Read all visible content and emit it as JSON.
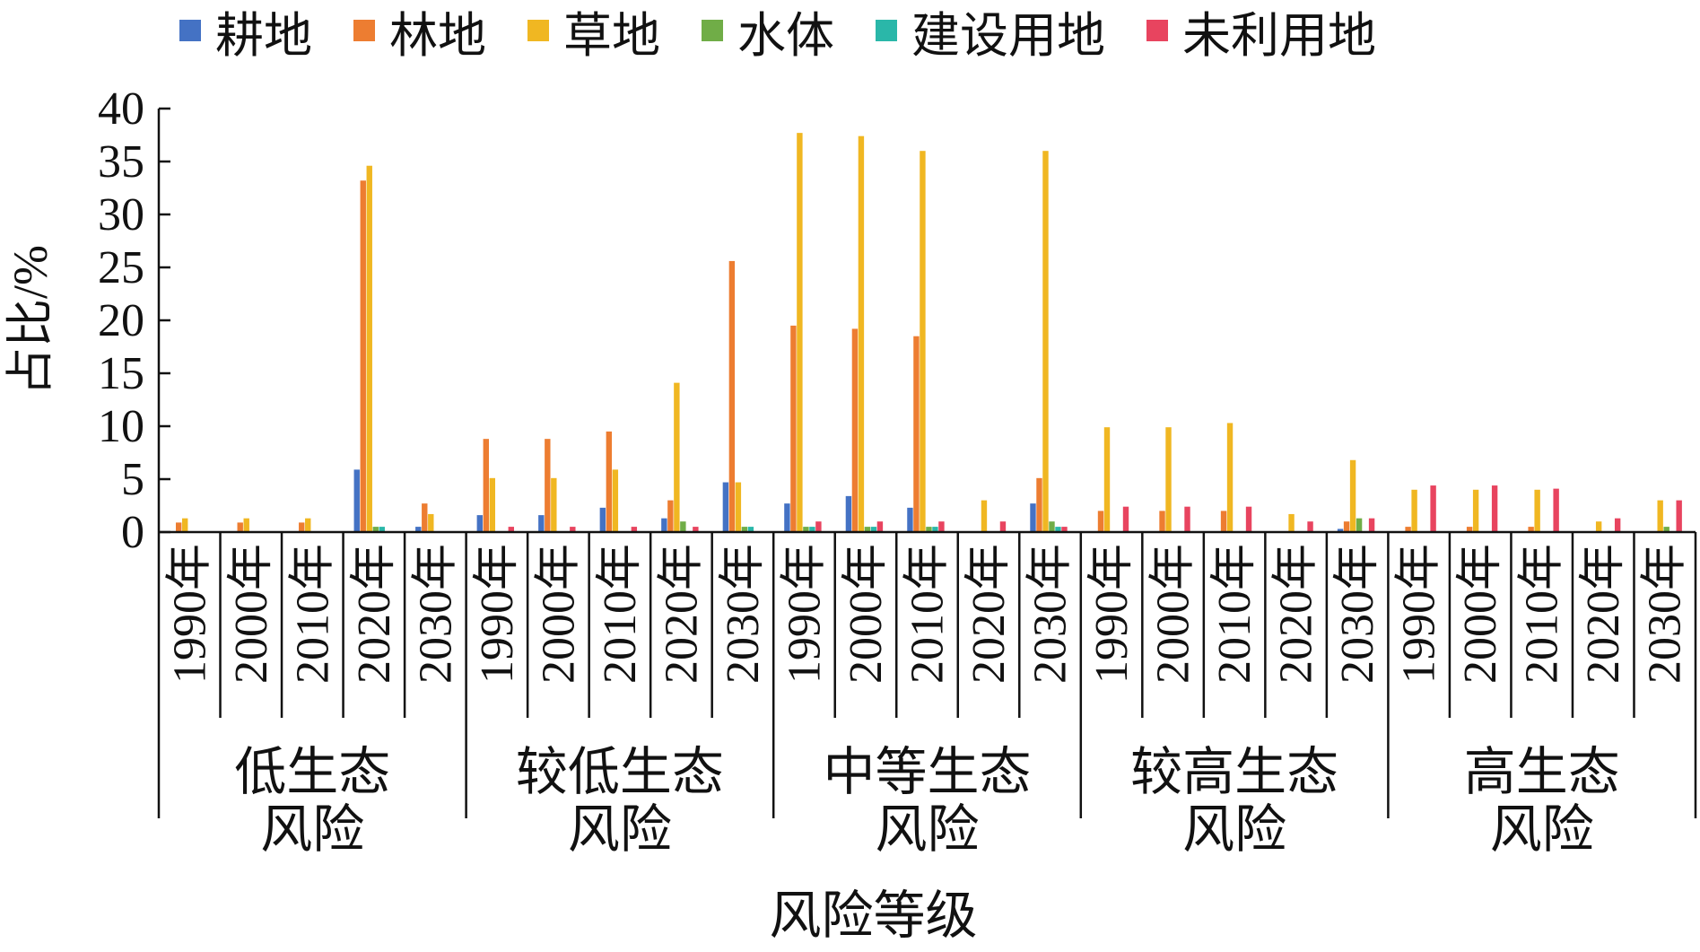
{
  "chart_data": {
    "type": "bar",
    "ylabel": "占比/%",
    "xlabel": "风险等级",
    "ylim": [
      0,
      40
    ],
    "yticks": [
      0,
      5,
      10,
      15,
      20,
      25,
      30,
      35,
      40
    ],
    "groups": [
      {
        "label": "低生态风险",
        "label_lines": [
          "低生态",
          "风险"
        ]
      },
      {
        "label": "较低生态风险",
        "label_lines": [
          "较低生态",
          "风险"
        ]
      },
      {
        "label": "中等生态风险",
        "label_lines": [
          "中等生态",
          "风险"
        ]
      },
      {
        "label": "较高生态风险",
        "label_lines": [
          "较高生态",
          "风险"
        ]
      },
      {
        "label": "高生态风险",
        "label_lines": [
          "高生态",
          "风险"
        ]
      }
    ],
    "years": [
      "1990年",
      "2000年",
      "2010年",
      "2020年",
      "2030年"
    ],
    "series": [
      {
        "name": "耕地",
        "color": "#4472c4",
        "values": [
          [
            0,
            0,
            0,
            5.9,
            0.5
          ],
          [
            1.6,
            1.6,
            2.3,
            1.3,
            4.7
          ],
          [
            2.7,
            3.4,
            2.3,
            0,
            2.7
          ],
          [
            0,
            0,
            0,
            0,
            0.3
          ],
          [
            0,
            0,
            0,
            0,
            0
          ]
        ]
      },
      {
        "name": "林地",
        "color": "#ed7d31",
        "values": [
          [
            0.9,
            0.9,
            0.9,
            33.2,
            2.7
          ],
          [
            8.8,
            8.8,
            9.5,
            3.0,
            25.6
          ],
          [
            19.5,
            19.2,
            18.5,
            0,
            5.1
          ],
          [
            2.0,
            2.0,
            2.0,
            0,
            1.0
          ],
          [
            0.5,
            0.5,
            0.5,
            0,
            0
          ]
        ]
      },
      {
        "name": "草地",
        "color": "#f0b722",
        "values": [
          [
            1.3,
            1.3,
            1.3,
            34.6,
            1.7
          ],
          [
            5.1,
            5.1,
            5.9,
            14.1,
            4.7
          ],
          [
            37.7,
            37.4,
            36.0,
            3.0,
            36.0
          ],
          [
            9.9,
            9.9,
            10.3,
            1.7,
            6.8
          ],
          [
            4.0,
            4.0,
            4.0,
            1.0,
            3.0
          ]
        ]
      },
      {
        "name": "水体",
        "color": "#70ad47",
        "values": [
          [
            0,
            0,
            0,
            0.5,
            0
          ],
          [
            0,
            0,
            0,
            1.0,
            0.5
          ],
          [
            0.5,
            0.5,
            0.5,
            0,
            1.0
          ],
          [
            0,
            0,
            0,
            0,
            1.3
          ],
          [
            0,
            0,
            0,
            0,
            0.5
          ]
        ]
      },
      {
        "name": "建设用地",
        "color": "#2ab7a9",
        "values": [
          [
            0,
            0,
            0,
            0.5,
            0
          ],
          [
            0,
            0,
            0,
            0,
            0.5
          ],
          [
            0.5,
            0.5,
            0.5,
            0,
            0.5
          ],
          [
            0,
            0,
            0,
            0,
            0
          ],
          [
            0,
            0,
            0,
            0,
            0
          ]
        ]
      },
      {
        "name": "未利用地",
        "color": "#e8445f",
        "values": [
          [
            0,
            0,
            0,
            0,
            0
          ],
          [
            0.5,
            0.5,
            0.5,
            0.5,
            0
          ],
          [
            1.0,
            1.0,
            1.0,
            1.0,
            0.5
          ],
          [
            2.4,
            2.4,
            2.4,
            1.0,
            1.3
          ],
          [
            4.4,
            4.4,
            4.1,
            1.3,
            3.0
          ]
        ]
      }
    ]
  }
}
